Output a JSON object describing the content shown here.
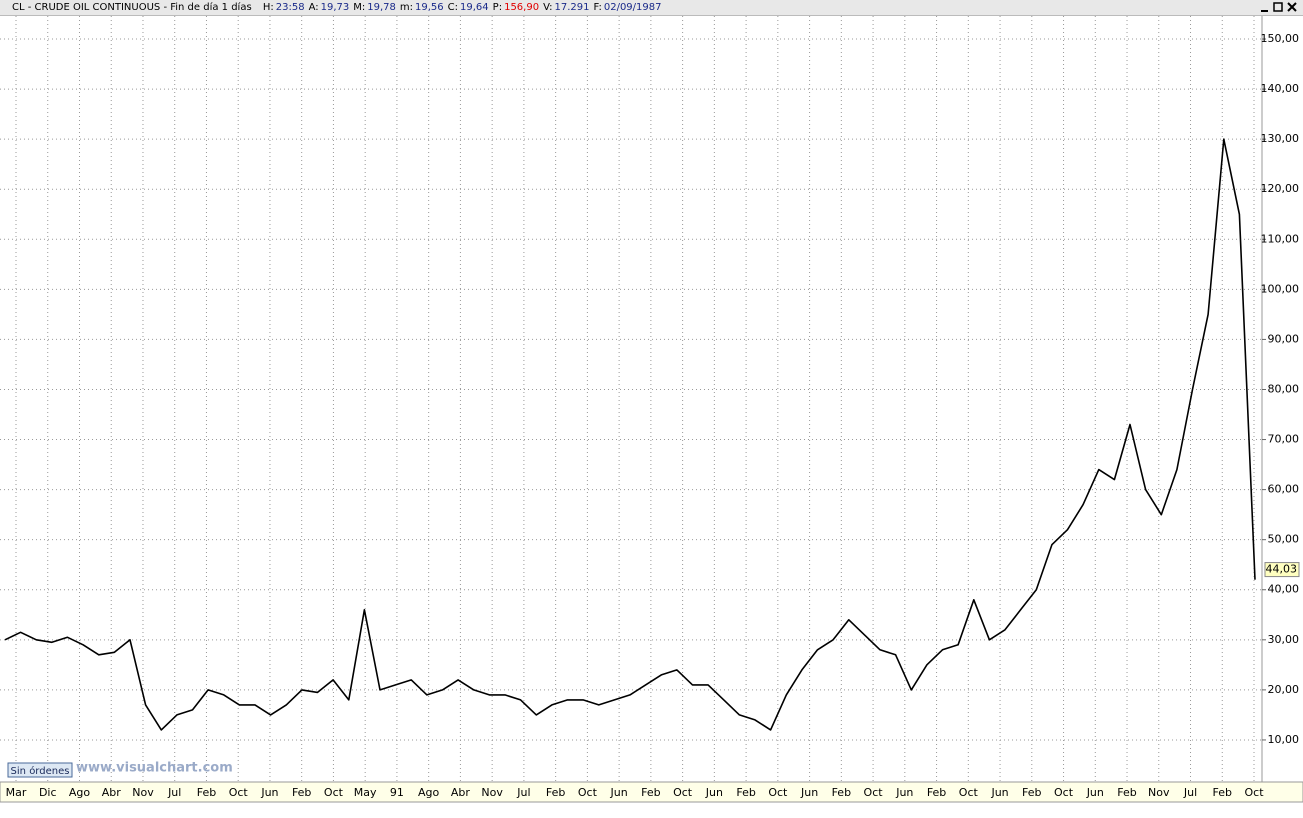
{
  "header": {
    "title": "CL - CRUDE OIL CONTINUOUS - Fin de día 1 días",
    "fields": [
      {
        "label": "H:",
        "value": "23:58"
      },
      {
        "label": "A:",
        "value": "19,73"
      },
      {
        "label": "M:",
        "value": "19,78"
      },
      {
        "label": "m:",
        "value": "19,56"
      },
      {
        "label": "C:",
        "value": "19,64"
      },
      {
        "label": "P:",
        "value": "156,90"
      },
      {
        "label": "V:",
        "value": "17.291"
      },
      {
        "label": "F:",
        "value": "02/09/1987"
      }
    ]
  },
  "footer": {
    "orders": "Sin órdenes",
    "site": "www.visualchart.com"
  },
  "chart_data": {
    "type": "line",
    "color": "#000000",
    "grid": true,
    "ylim": [
      1.6,
      154.6
    ],
    "yticks": [
      {
        "value": 10,
        "label": "10,00"
      },
      {
        "value": 20,
        "label": "20,00"
      },
      {
        "value": 30,
        "label": "30,00"
      },
      {
        "value": 40,
        "label": "40,00"
      },
      {
        "value": 50,
        "label": "50,00"
      },
      {
        "value": 60,
        "label": "60,00"
      },
      {
        "value": 70,
        "label": "70,00"
      },
      {
        "value": 80,
        "label": "80,00"
      },
      {
        "value": 90,
        "label": "90,00"
      },
      {
        "value": 100,
        "label": "100,00"
      },
      {
        "value": 110,
        "label": "110,00"
      },
      {
        "value": 120,
        "label": "120,00"
      },
      {
        "value": 130,
        "label": "130,00"
      },
      {
        "value": 140,
        "label": "140,00"
      },
      {
        "value": 150,
        "label": "150,00"
      }
    ],
    "xtick_labels": [
      "Mar",
      "Dic",
      "Ago",
      "Abr",
      "Nov",
      "Jul",
      "Feb",
      "Oct",
      "Jun",
      "Feb",
      "Oct",
      "May",
      "91",
      "Ago",
      "Abr",
      "Nov",
      "Jul",
      "Feb",
      "Oct",
      "Jun",
      "Feb",
      "Oct",
      "Jun",
      "Feb",
      "Oct",
      "Jun",
      "Feb",
      "Oct",
      "Jun",
      "Feb",
      "Oct",
      "Jun",
      "Feb",
      "Oct",
      "Jun",
      "Feb",
      "Nov",
      "Jul",
      "Feb",
      "Oct"
    ],
    "values": [
      30,
      31.5,
      30,
      29.5,
      30.5,
      29,
      27,
      27.5,
      30,
      17,
      12,
      15,
      16,
      20,
      19,
      17,
      17,
      15,
      17,
      20,
      19.5,
      22,
      18,
      36,
      20,
      21,
      22,
      19,
      20,
      22,
      20,
      19,
      19,
      18,
      15,
      17,
      18,
      18,
      17,
      18,
      19,
      21,
      23,
      24,
      21,
      21,
      18,
      15,
      14,
      12,
      19,
      24,
      28,
      30,
      34,
      31,
      28,
      27,
      20,
      25,
      28,
      29,
      38,
      30,
      32,
      36,
      40,
      49,
      52,
      57,
      64,
      62,
      73,
      60,
      55,
      64,
      80,
      95,
      130,
      115,
      42
    ],
    "last_value": {
      "value": 44.03,
      "label": "44,03"
    }
  }
}
